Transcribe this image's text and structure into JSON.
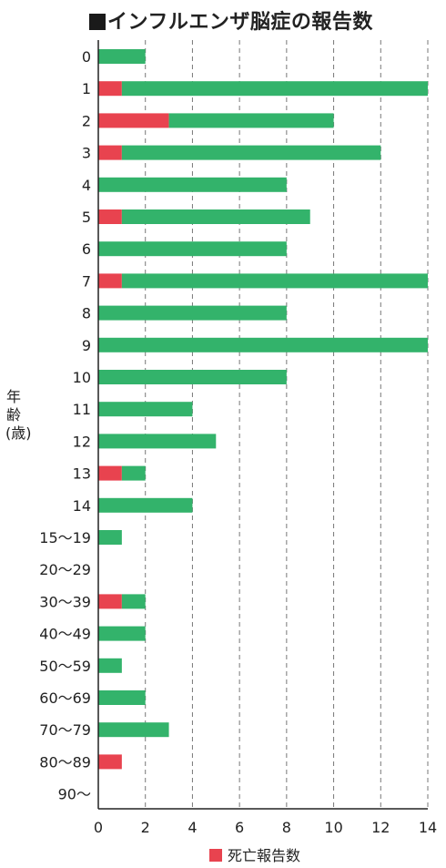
{
  "chart_data": {
    "type": "bar",
    "orientation": "horizontal",
    "stacked": true,
    "title": "■インフルエンザ脳症の報告数",
    "ylabel": "年齢(歳)",
    "xlabel": "",
    "xlim": [
      0,
      14
    ],
    "xticks": [
      0,
      2,
      4,
      6,
      8,
      10,
      12,
      14
    ],
    "grid": "vertical dashed",
    "legend_position": "bottom",
    "categories": [
      "0",
      "1",
      "2",
      "3",
      "4",
      "5",
      "6",
      "7",
      "8",
      "9",
      "10",
      "11",
      "12",
      "13",
      "14",
      "15〜19",
      "20〜29",
      "30〜39",
      "40〜49",
      "50〜59",
      "60〜69",
      "70〜79",
      "80〜89",
      "90〜"
    ],
    "series": [
      {
        "name": "死亡報告数",
        "color": "#e8434f",
        "values": [
          0,
          1,
          3,
          1,
          0,
          1,
          0,
          1,
          0,
          0,
          0,
          0,
          0,
          1,
          0,
          0,
          0,
          1,
          0,
          0,
          0,
          0,
          1,
          0
        ]
      },
      {
        "name": "",
        "color": "#33b36b",
        "values": [
          2,
          13,
          7,
          11,
          8,
          8,
          8,
          13,
          8,
          14,
          8,
          4,
          5,
          1,
          4,
          1,
          0,
          1,
          2,
          1,
          2,
          3,
          0,
          0
        ]
      }
    ]
  }
}
